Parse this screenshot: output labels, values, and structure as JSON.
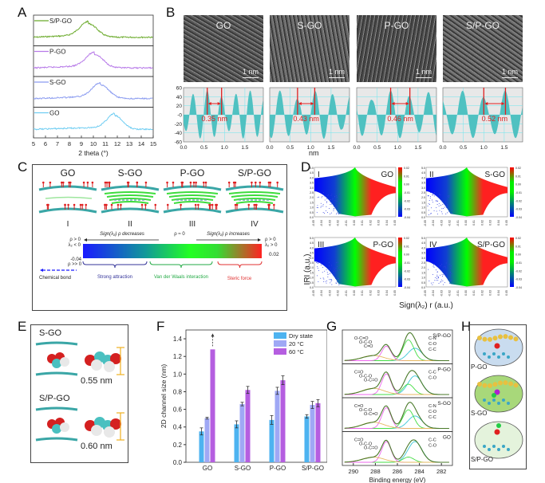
{
  "panels": {
    "A": "A",
    "B": "B",
    "C": "C",
    "D": "D",
    "E": "E",
    "F": "F",
    "G": "G",
    "H": "H"
  },
  "chart_data": [
    {
      "id": "A",
      "type": "line",
      "title": "",
      "xlabel": "2 theta (°)",
      "ylabel": "",
      "xlim": [
        5,
        15
      ],
      "xticks": [
        "5",
        "6",
        "7",
        "8",
        "9",
        "10",
        "11",
        "12",
        "13",
        "14",
        "15"
      ],
      "series": [
        {
          "name": "S/P-GO",
          "color": "#6aaa2a",
          "peak_x": 9.6
        },
        {
          "name": "P-GO",
          "color": "#b77ae8",
          "peak_x": 10.1
        },
        {
          "name": "S-GO",
          "color": "#8a9bf0",
          "peak_x": 10.6
        },
        {
          "name": "GO",
          "color": "#6fcdf2",
          "peak_x": 11.8
        }
      ]
    },
    {
      "id": "B",
      "type": "area",
      "xlabel": "nm",
      "ylim": [
        -60,
        60
      ],
      "yticks": [
        "60",
        "40",
        "20",
        "-0",
        "-20",
        "-40",
        "-60"
      ],
      "xticks": [
        "0.0",
        "0.5",
        "1.0",
        "1.5"
      ],
      "color": "#4fc1c1",
      "panels": [
        {
          "name": "GO",
          "scale": "1 nm",
          "spacing": "0.35 nm",
          "spacing_value": 0.35,
          "marker_x": [
            0.58,
            0.93
          ]
        },
        {
          "name": "S-GO",
          "scale": "1 nm",
          "spacing": "0.43 nm",
          "spacing_value": 0.43,
          "marker_x": [
            0.68,
            1.1
          ]
        },
        {
          "name": "P-GO",
          "scale": "1 nm",
          "spacing": "0.46 nm",
          "spacing_value": 0.46,
          "marker_x": [
            0.83,
            1.3
          ]
        },
        {
          "name": "S/P-GO",
          "scale": "1 nm",
          "spacing": "0.52 nm",
          "spacing_value": 0.52,
          "marker_x": [
            1.0,
            1.53
          ]
        }
      ]
    },
    {
      "id": "C",
      "type": "diagram",
      "structures": [
        {
          "name": "GO",
          "roman": "I"
        },
        {
          "name": "S-GO",
          "roman": "II"
        },
        {
          "name": "P-GO",
          "roman": "III"
        },
        {
          "name": "S/P-GO",
          "roman": "IV"
        }
      ],
      "scale": {
        "left_cond": "ρ > 0",
        "left_cond2": "λ₂ < 0",
        "left_value": "-0.04",
        "right_cond": "ρ > 0",
        "right_cond2": "λ₂ > 0",
        "right_value": "0.02",
        "dec_label": "Sign(λ₂) ρ decreases",
        "zero_label": "ρ ≈ 0",
        "inc_label": "Sign(λ₂) ρ increases",
        "chem_cond": "ρ >> 0",
        "chem_label": "Chemical bond",
        "strong_label": "Strong attraction",
        "vdw_label": "Van der Waals interaction",
        "steric_label": "Steric force",
        "colors": {
          "blue": "#1a1aff",
          "green": "#22dd22",
          "red": "#ff2222",
          "chem": "#1a1aff",
          "strong": "#333399",
          "vdw": "#22aa44",
          "steric": "#e03030"
        }
      }
    },
    {
      "id": "D",
      "type": "scatter",
      "ylabel": "IRI (a.u.)",
      "xlabel": "Sign(λ₂) r (a.u.)",
      "ylim": [
        0,
        5.0
      ],
      "xlim": [
        -0.05,
        0.05
      ],
      "yticks": [
        "5.0",
        "4.5",
        "4.0",
        "3.5",
        "3.0",
        "2.5",
        "2.0",
        "1.5",
        "1.0",
        "0.5",
        "0.0"
      ],
      "xticks": [
        "-0.05",
        "-0.04",
        "-0.03",
        "-0.02",
        "-0.01",
        "0.00",
        "0.01",
        "0.02",
        "0.03",
        "0.04",
        "0.05"
      ],
      "colorbar": [
        "0.02",
        "0.01",
        "0.00",
        "-0.01",
        "-0.02",
        "-0.03",
        "-0.04"
      ],
      "panels": [
        {
          "roman": "I",
          "name": "GO"
        },
        {
          "roman": "II",
          "name": "S-GO"
        },
        {
          "roman": "III",
          "name": "P-GO"
        },
        {
          "roman": "IV",
          "name": "S/P-GO"
        }
      ]
    },
    {
      "id": "E",
      "type": "diagram",
      "items": [
        {
          "name": "S-GO",
          "size": "0.55 nm"
        },
        {
          "name": "S/P-GO",
          "size": "0.60 nm"
        }
      ]
    },
    {
      "id": "F",
      "type": "bar",
      "title": "",
      "xlabel": "",
      "ylabel": "2D channel size (nm)",
      "ylim": [
        0,
        1.5
      ],
      "yticks": [
        "0.0",
        "0.2",
        "0.4",
        "0.6",
        "0.8",
        "1.0",
        "1.2",
        "1.4"
      ],
      "categories": [
        "GO",
        "S-GO",
        "P-GO",
        "S/P-GO"
      ],
      "series": [
        {
          "name": "Dry state",
          "color": "#4db3f0",
          "values": [
            0.35,
            0.43,
            0.48,
            0.52
          ],
          "errors": [
            0.04,
            0.04,
            0.05,
            0.02
          ]
        },
        {
          "name": "20 °C",
          "color": "#9fa8f5",
          "values": [
            0.5,
            0.66,
            0.81,
            0.65
          ],
          "errors": [
            0.01,
            0.02,
            0.04,
            0.04
          ]
        },
        {
          "name": "60 °C",
          "color": "#b55ee0",
          "values": [
            1.28,
            0.82,
            0.93,
            0.67
          ],
          "errors": [
            0,
            0.04,
            0.05,
            0.04
          ]
        }
      ],
      "annotation": "GO 60 °C bar exceeds shown value (arrow)"
    },
    {
      "id": "G",
      "type": "line",
      "xlabel": "Binding energy (eV)",
      "xlim": [
        291,
        281
      ],
      "xticks": [
        "290",
        "288",
        "286",
        "284",
        "282"
      ],
      "panels": [
        {
          "name": "S/P-GO",
          "labels": [
            "O-C=O",
            "O-C-O",
            "C=O",
            "C-N",
            "C-O",
            "C-C"
          ]
        },
        {
          "name": "P-GO",
          "labels": [
            "C=O",
            "O-C-O",
            "O-C=O",
            "C-C",
            "C-O"
          ]
        },
        {
          "name": "S-GO",
          "labels": [
            "C=O",
            "O-C-O",
            "O-C=O",
            "C-N",
            "C-O",
            "C-C"
          ]
        },
        {
          "name": "GO",
          "labels": [
            "C=O",
            "O-C-O",
            "O-C=O",
            "C-C",
            "C-O"
          ]
        }
      ],
      "colors": {
        "envelope": "#4a7a2a",
        "c_c": "#3cc8d8",
        "c_o": "#44dd44",
        "c_eq_o": "#ee66ee",
        "o_c_eq_o": "#e6b860",
        "c_n": "#cc6644"
      }
    },
    {
      "id": "H",
      "type": "diagram",
      "items": [
        {
          "name": "P-GO",
          "bg": "#c9dcef"
        },
        {
          "name": "S-GO",
          "bg": "#a8d87a"
        },
        {
          "name": "S/P-GO",
          "bg": "#e4f3dc"
        }
      ]
    }
  ]
}
